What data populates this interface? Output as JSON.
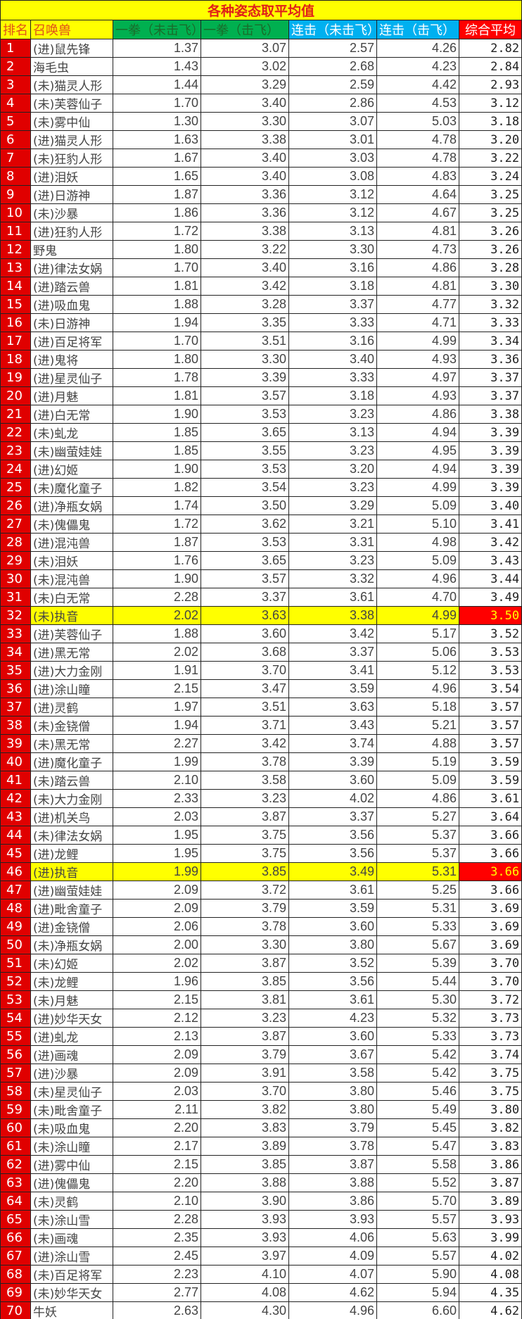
{
  "title": "各种姿态取平均值",
  "headers": [
    "排名",
    "召唤兽",
    "一拳（未击飞）",
    "一拳（击飞）",
    "连击（未击飞）",
    "连击（击飞）",
    "综合平均"
  ],
  "highlight_color": "#ffff00",
  "rows": [
    [
      "1",
      "(进)鼠先锋",
      "1.37",
      "3.07",
      "2.57",
      "4.26",
      "2.82"
    ],
    [
      "2",
      "海毛虫",
      "1.43",
      "3.02",
      "2.68",
      "4.23",
      "2.84"
    ],
    [
      "3",
      "(未)猫灵人形",
      "1.44",
      "3.29",
      "2.59",
      "4.42",
      "2.93"
    ],
    [
      "4",
      "(未)芙蓉仙子",
      "1.70",
      "3.40",
      "2.86",
      "4.53",
      "3.12"
    ],
    [
      "5",
      "(未)雾中仙",
      "1.30",
      "3.30",
      "3.07",
      "5.03",
      "3.18"
    ],
    [
      "6",
      "(进)猫灵人形",
      "1.63",
      "3.38",
      "3.01",
      "4.78",
      "3.20"
    ],
    [
      "7",
      "(未)狂豹人形",
      "1.67",
      "3.40",
      "3.03",
      "4.78",
      "3.22"
    ],
    [
      "8",
      "(进)泪妖",
      "1.65",
      "3.40",
      "3.08",
      "4.83",
      "3.24"
    ],
    [
      "9",
      "(进)日游神",
      "1.87",
      "3.36",
      "3.12",
      "4.64",
      "3.25"
    ],
    [
      "10",
      "(未)沙暴",
      "1.86",
      "3.36",
      "3.12",
      "4.67",
      "3.25"
    ],
    [
      "11",
      "(进)狂豹人形",
      "1.72",
      "3.38",
      "3.13",
      "4.81",
      "3.26"
    ],
    [
      "12",
      "野鬼",
      "1.80",
      "3.22",
      "3.30",
      "4.73",
      "3.26"
    ],
    [
      "13",
      "(进)律法女娲",
      "1.70",
      "3.40",
      "3.16",
      "4.86",
      "3.28"
    ],
    [
      "14",
      "(进)踏云兽",
      "1.81",
      "3.42",
      "3.18",
      "4.81",
      "3.30"
    ],
    [
      "15",
      "(进)吸血鬼",
      "1.88",
      "3.28",
      "3.37",
      "4.77",
      "3.32"
    ],
    [
      "16",
      "(未)日游神",
      "1.94",
      "3.35",
      "3.33",
      "4.71",
      "3.33"
    ],
    [
      "17",
      "(进)百足将军",
      "1.70",
      "3.51",
      "3.16",
      "4.99",
      "3.34"
    ],
    [
      "18",
      "(进)鬼将",
      "1.80",
      "3.30",
      "3.40",
      "4.93",
      "3.36"
    ],
    [
      "19",
      "(进)星灵仙子",
      "1.78",
      "3.39",
      "3.33",
      "4.97",
      "3.37"
    ],
    [
      "20",
      "(进)月魅",
      "1.81",
      "3.57",
      "3.18",
      "4.93",
      "3.37"
    ],
    [
      "21",
      "(进)白无常",
      "1.90",
      "3.53",
      "3.23",
      "4.86",
      "3.38"
    ],
    [
      "22",
      "(未)虬龙",
      "1.85",
      "3.65",
      "3.13",
      "4.94",
      "3.39"
    ],
    [
      "23",
      "(未)幽萤娃娃",
      "1.85",
      "3.55",
      "3.23",
      "4.95",
      "3.39"
    ],
    [
      "24",
      "(进)幻姬",
      "1.90",
      "3.53",
      "3.20",
      "4.94",
      "3.39"
    ],
    [
      "25",
      "(未)魔化童子",
      "1.82",
      "3.54",
      "3.23",
      "4.99",
      "3.39"
    ],
    [
      "26",
      "(进)净瓶女娲",
      "1.74",
      "3.50",
      "3.29",
      "5.09",
      "3.40"
    ],
    [
      "27",
      "(未)傀儡鬼",
      "1.72",
      "3.62",
      "3.21",
      "5.10",
      "3.41"
    ],
    [
      "28",
      "(进)混沌兽",
      "1.87",
      "3.53",
      "3.31",
      "4.98",
      "3.42"
    ],
    [
      "29",
      "(未)泪妖",
      "1.76",
      "3.65",
      "3.23",
      "5.09",
      "3.43"
    ],
    [
      "30",
      "(未)混沌兽",
      "1.90",
      "3.57",
      "3.32",
      "4.96",
      "3.44"
    ],
    [
      "31",
      "(未)白无常",
      "2.28",
      "3.37",
      "3.61",
      "4.70",
      "3.49"
    ],
    [
      "32",
      "(未)执音",
      "2.02",
      "3.63",
      "3.38",
      "4.99",
      "3.50"
    ],
    [
      "33",
      "(进)芙蓉仙子",
      "1.88",
      "3.60",
      "3.42",
      "5.17",
      "3.52"
    ],
    [
      "34",
      "(进)黑无常",
      "2.02",
      "3.68",
      "3.37",
      "5.06",
      "3.53"
    ],
    [
      "35",
      "(进)大力金刚",
      "1.91",
      "3.70",
      "3.41",
      "5.12",
      "3.53"
    ],
    [
      "36",
      "(进)涂山瞳",
      "2.15",
      "3.47",
      "3.59",
      "4.96",
      "3.54"
    ],
    [
      "37",
      "(进)灵鹤",
      "1.97",
      "3.51",
      "3.63",
      "5.18",
      "3.57"
    ],
    [
      "38",
      "(未)金铙僧",
      "1.94",
      "3.71",
      "3.43",
      "5.21",
      "3.57"
    ],
    [
      "39",
      "(未)黑无常",
      "2.27",
      "3.42",
      "3.74",
      "4.88",
      "3.57"
    ],
    [
      "40",
      "(进)魔化童子",
      "1.99",
      "3.78",
      "3.39",
      "5.19",
      "3.59"
    ],
    [
      "41",
      "(未)踏云兽",
      "2.10",
      "3.58",
      "3.60",
      "5.09",
      "3.59"
    ],
    [
      "42",
      "(未)大力金刚",
      "2.33",
      "3.23",
      "4.02",
      "4.86",
      "3.61"
    ],
    [
      "43",
      "(进)机关鸟",
      "2.03",
      "3.87",
      "3.37",
      "5.27",
      "3.64"
    ],
    [
      "44",
      "(未)律法女娲",
      "1.95",
      "3.75",
      "3.56",
      "5.37",
      "3.66"
    ],
    [
      "45",
      "(进)龙鲤",
      "1.95",
      "3.75",
      "3.56",
      "5.37",
      "3.66"
    ],
    [
      "46",
      "(进)执音",
      "1.99",
      "3.85",
      "3.49",
      "5.31",
      "3.66"
    ],
    [
      "47",
      "(进)幽萤娃娃",
      "2.09",
      "3.72",
      "3.61",
      "5.25",
      "3.66"
    ],
    [
      "48",
      "(进)毗舍童子",
      "2.09",
      "3.79",
      "3.59",
      "5.31",
      "3.69"
    ],
    [
      "49",
      "(进)金铙僧",
      "2.06",
      "3.78",
      "3.60",
      "5.33",
      "3.69"
    ],
    [
      "50",
      "(未)净瓶女娲",
      "2.00",
      "3.30",
      "3.80",
      "5.67",
      "3.69"
    ],
    [
      "51",
      "(未)幻姬",
      "2.02",
      "3.87",
      "3.52",
      "5.39",
      "3.70"
    ],
    [
      "52",
      "(未)龙鲤",
      "1.96",
      "3.85",
      "3.56",
      "5.44",
      "3.70"
    ],
    [
      "53",
      "(未)月魅",
      "2.15",
      "3.81",
      "3.61",
      "5.30",
      "3.72"
    ],
    [
      "54",
      "(进)妙华天女",
      "2.12",
      "3.23",
      "4.23",
      "5.32",
      "3.73"
    ],
    [
      "55",
      "(进)虬龙",
      "2.13",
      "3.87",
      "3.60",
      "5.33",
      "3.73"
    ],
    [
      "56",
      "(进)画魂",
      "2.09",
      "3.79",
      "3.67",
      "5.42",
      "3.74"
    ],
    [
      "57",
      "(进)沙暴",
      "2.09",
      "3.91",
      "3.58",
      "5.42",
      "3.75"
    ],
    [
      "58",
      "(未)星灵仙子",
      "2.03",
      "3.70",
      "3.80",
      "5.46",
      "3.75"
    ],
    [
      "59",
      "(未)毗舍童子",
      "2.11",
      "3.82",
      "3.80",
      "5.49",
      "3.80"
    ],
    [
      "60",
      "(未)吸血鬼",
      "2.20",
      "3.83",
      "3.79",
      "5.45",
      "3.82"
    ],
    [
      "61",
      "(未)涂山瞳",
      "2.17",
      "3.89",
      "3.78",
      "5.47",
      "3.83"
    ],
    [
      "62",
      "(进)雾中仙",
      "2.15",
      "3.85",
      "3.87",
      "5.58",
      "3.86"
    ],
    [
      "63",
      "(进)傀儡鬼",
      "2.20",
      "3.88",
      "3.88",
      "5.52",
      "3.87"
    ],
    [
      "64",
      "(未)灵鹤",
      "2.10",
      "3.90",
      "3.86",
      "5.70",
      "3.89"
    ],
    [
      "65",
      "(未)涂山雪",
      "2.28",
      "3.93",
      "3.93",
      "5.57",
      "3.93"
    ],
    [
      "66",
      "(未)画魂",
      "2.35",
      "3.93",
      "4.06",
      "5.63",
      "3.99"
    ],
    [
      "67",
      "(进)涂山雪",
      "2.45",
      "3.97",
      "4.09",
      "5.57",
      "4.02"
    ],
    [
      "68",
      "(未)百足将军",
      "2.23",
      "4.10",
      "4.07",
      "5.90",
      "4.08"
    ],
    [
      "69",
      "(未)妙华天女",
      "2.77",
      "4.08",
      "4.62",
      "5.94",
      "4.35"
    ],
    [
      "70",
      "牛妖",
      "2.63",
      "4.30",
      "4.96",
      "6.60",
      "4.62"
    ]
  ],
  "highlighted_ranks": [
    "32",
    "46"
  ]
}
